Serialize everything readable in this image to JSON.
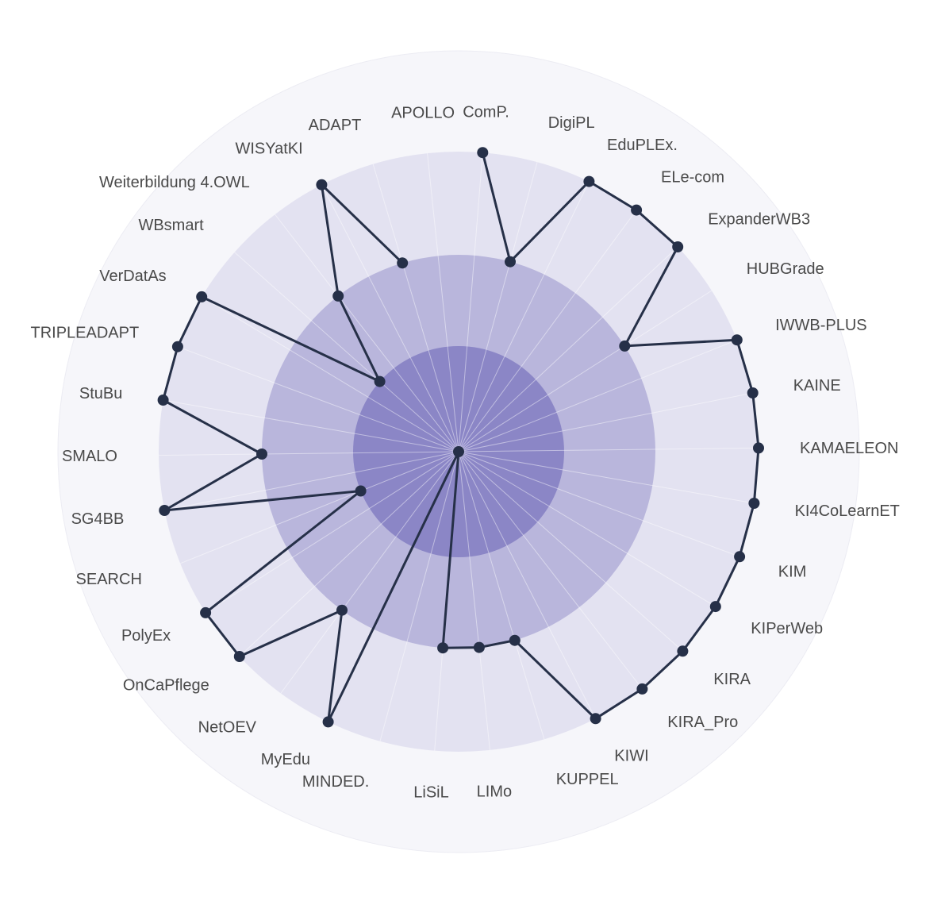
{
  "chart_data": {
    "type": "radar",
    "title": "",
    "categories": [
      "ComP.",
      "DigiPL",
      "EduPLEx.",
      "ELe-com",
      "ExpanderWB3",
      "HUBGrade",
      "IWWB-PLUS",
      "KAINE",
      "KAMAELEON",
      "KI4CoLearnET",
      "KIM",
      "KIPerWeb",
      "KIRA",
      "KIRA_Pro",
      "KIWI",
      "KUPPEL",
      "LIMo",
      "LiSiL",
      "MINDED.",
      "MyEdu",
      "NetOEV",
      "OnCaPflege",
      "PolyEx",
      "SEARCH",
      "SG4BB",
      "SMALO",
      "StuBu",
      "TRIPLEADAPT",
      "VerDatAs",
      "WBsmart",
      "Weiterbildung 4.OWL",
      "WISYatKI",
      "ADAPT",
      "APOLLO"
    ],
    "values": [
      3,
      2,
      3,
      3,
      3,
      2,
      3,
      3,
      3,
      3,
      3,
      3,
      3,
      3,
      3,
      2,
      2,
      2,
      0,
      3,
      2,
      3,
      3,
      1,
      3,
      2,
      3,
      3,
      3,
      1,
      2,
      3,
      2,
      null
    ],
    "rlim": [
      0,
      3
    ],
    "bands": [
      {
        "from": 0,
        "to": 1,
        "color": "#8b86c6"
      },
      {
        "from": 1,
        "to": 2,
        "color": "#b9b6dc"
      },
      {
        "from": 2,
        "to": 3,
        "color": "#e3e2f1"
      }
    ],
    "outer_ring_color": "#f6f6fa",
    "line_color": "#263048",
    "marker_color": "#263048",
    "grid": true
  }
}
